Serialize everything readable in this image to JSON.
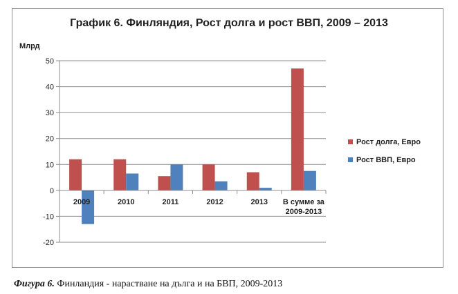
{
  "chart_data": {
    "type": "bar",
    "title": "График 6. Финляндия, Рост долга и рост ВВП, 2009 – 2013",
    "ylabel": "Млрд",
    "ylim": [
      -20,
      50
    ],
    "yticks": [
      50,
      40,
      30,
      20,
      10,
      0,
      -10,
      -20
    ],
    "grid": true,
    "legend_position": "right",
    "categories": [
      "2009",
      "2010",
      "2011",
      "2012",
      "2013",
      [
        "В сумме за",
        "2009-2013"
      ]
    ],
    "series": [
      {
        "name": "Рост долга, Евро",
        "color": "#c0504d",
        "values": [
          12,
          12,
          5.5,
          10,
          7,
          47
        ]
      },
      {
        "name": "Рост ВВП, Евро",
        "color": "#4f81bd",
        "values": [
          -13,
          6.5,
          10,
          3.5,
          1,
          7.5
        ]
      }
    ]
  },
  "caption": {
    "label": "Фигура 6.",
    "text": " Финландия - нарастване на дълга и на БВП, 2009-2013"
  }
}
